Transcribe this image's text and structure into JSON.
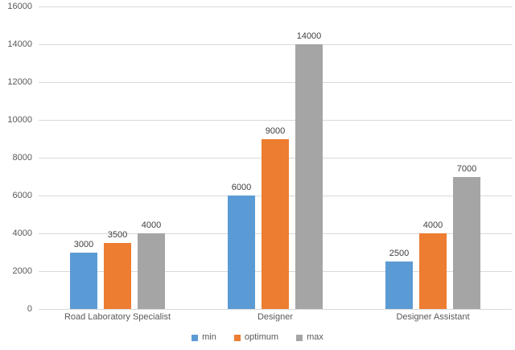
{
  "chart_data": {
    "type": "bar",
    "title": "",
    "xlabel": "",
    "ylabel": "",
    "categories": [
      "Road Laboratory Specialist",
      "Designer",
      "Designer Assistant"
    ],
    "series": [
      {
        "name": "min",
        "color": "#5B9BD5",
        "values": [
          3000,
          6000,
          2500
        ]
      },
      {
        "name": "optimum",
        "color": "#ED7D31",
        "values": [
          3500,
          9000,
          4000
        ]
      },
      {
        "name": "max",
        "color": "#A5A5A5",
        "values": [
          4000,
          14000,
          7000
        ]
      }
    ],
    "data_labels": [
      "3000",
      "3500",
      "4000",
      "6000",
      "9000",
      "14000",
      "2500",
      "4000",
      "7000"
    ],
    "ylim": [
      0,
      16000
    ],
    "ytick_step": 2000,
    "ytick_labels": [
      "0",
      "2000",
      "4000",
      "6000",
      "8000",
      "10000",
      "12000",
      "14000",
      "16000"
    ],
    "grid": true,
    "legend_position": "bottom-center"
  },
  "style": {
    "background": "#FFFFFF",
    "gridline_color": "#D9D9D9",
    "axis_line_color": "#D9D9D9",
    "tick_label_color": "#595959",
    "category_label_color": "#595959",
    "data_label_color": "#404040"
  }
}
